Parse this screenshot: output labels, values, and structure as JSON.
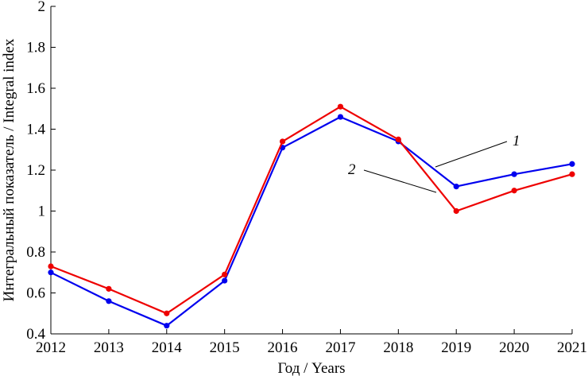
{
  "chart_data": {
    "type": "line",
    "title": "",
    "xlabel": "Год / Years",
    "ylabel": "Интегральный показатель / Integral index",
    "x": [
      2012,
      2013,
      2014,
      2015,
      2016,
      2017,
      2018,
      2019,
      2020,
      2021
    ],
    "xlim": [
      2012,
      2021
    ],
    "ylim": [
      0.4,
      2
    ],
    "yticks": [
      "0.4",
      "0.6",
      "0.8",
      "1",
      "1.2",
      "1.4",
      "1.6",
      "1.8",
      "2"
    ],
    "xticks": [
      "2012",
      "2013",
      "2014",
      "2015",
      "2016",
      "2017",
      "2018",
      "2019",
      "2020",
      "2021"
    ],
    "grid": false,
    "legend": "none",
    "series": [
      {
        "name": "",
        "callout_label": "1",
        "color": "#0000ee",
        "values": [
          0.7,
          0.56,
          0.44,
          0.66,
          1.31,
          1.46,
          1.34,
          1.12,
          1.18,
          1.23
        ]
      },
      {
        "name": "",
        "callout_label": "2",
        "color": "#ee0000",
        "values": [
          0.73,
          0.62,
          0.5,
          0.69,
          1.34,
          1.51,
          1.35,
          1.0,
          1.1,
          1.18
        ]
      }
    ]
  }
}
